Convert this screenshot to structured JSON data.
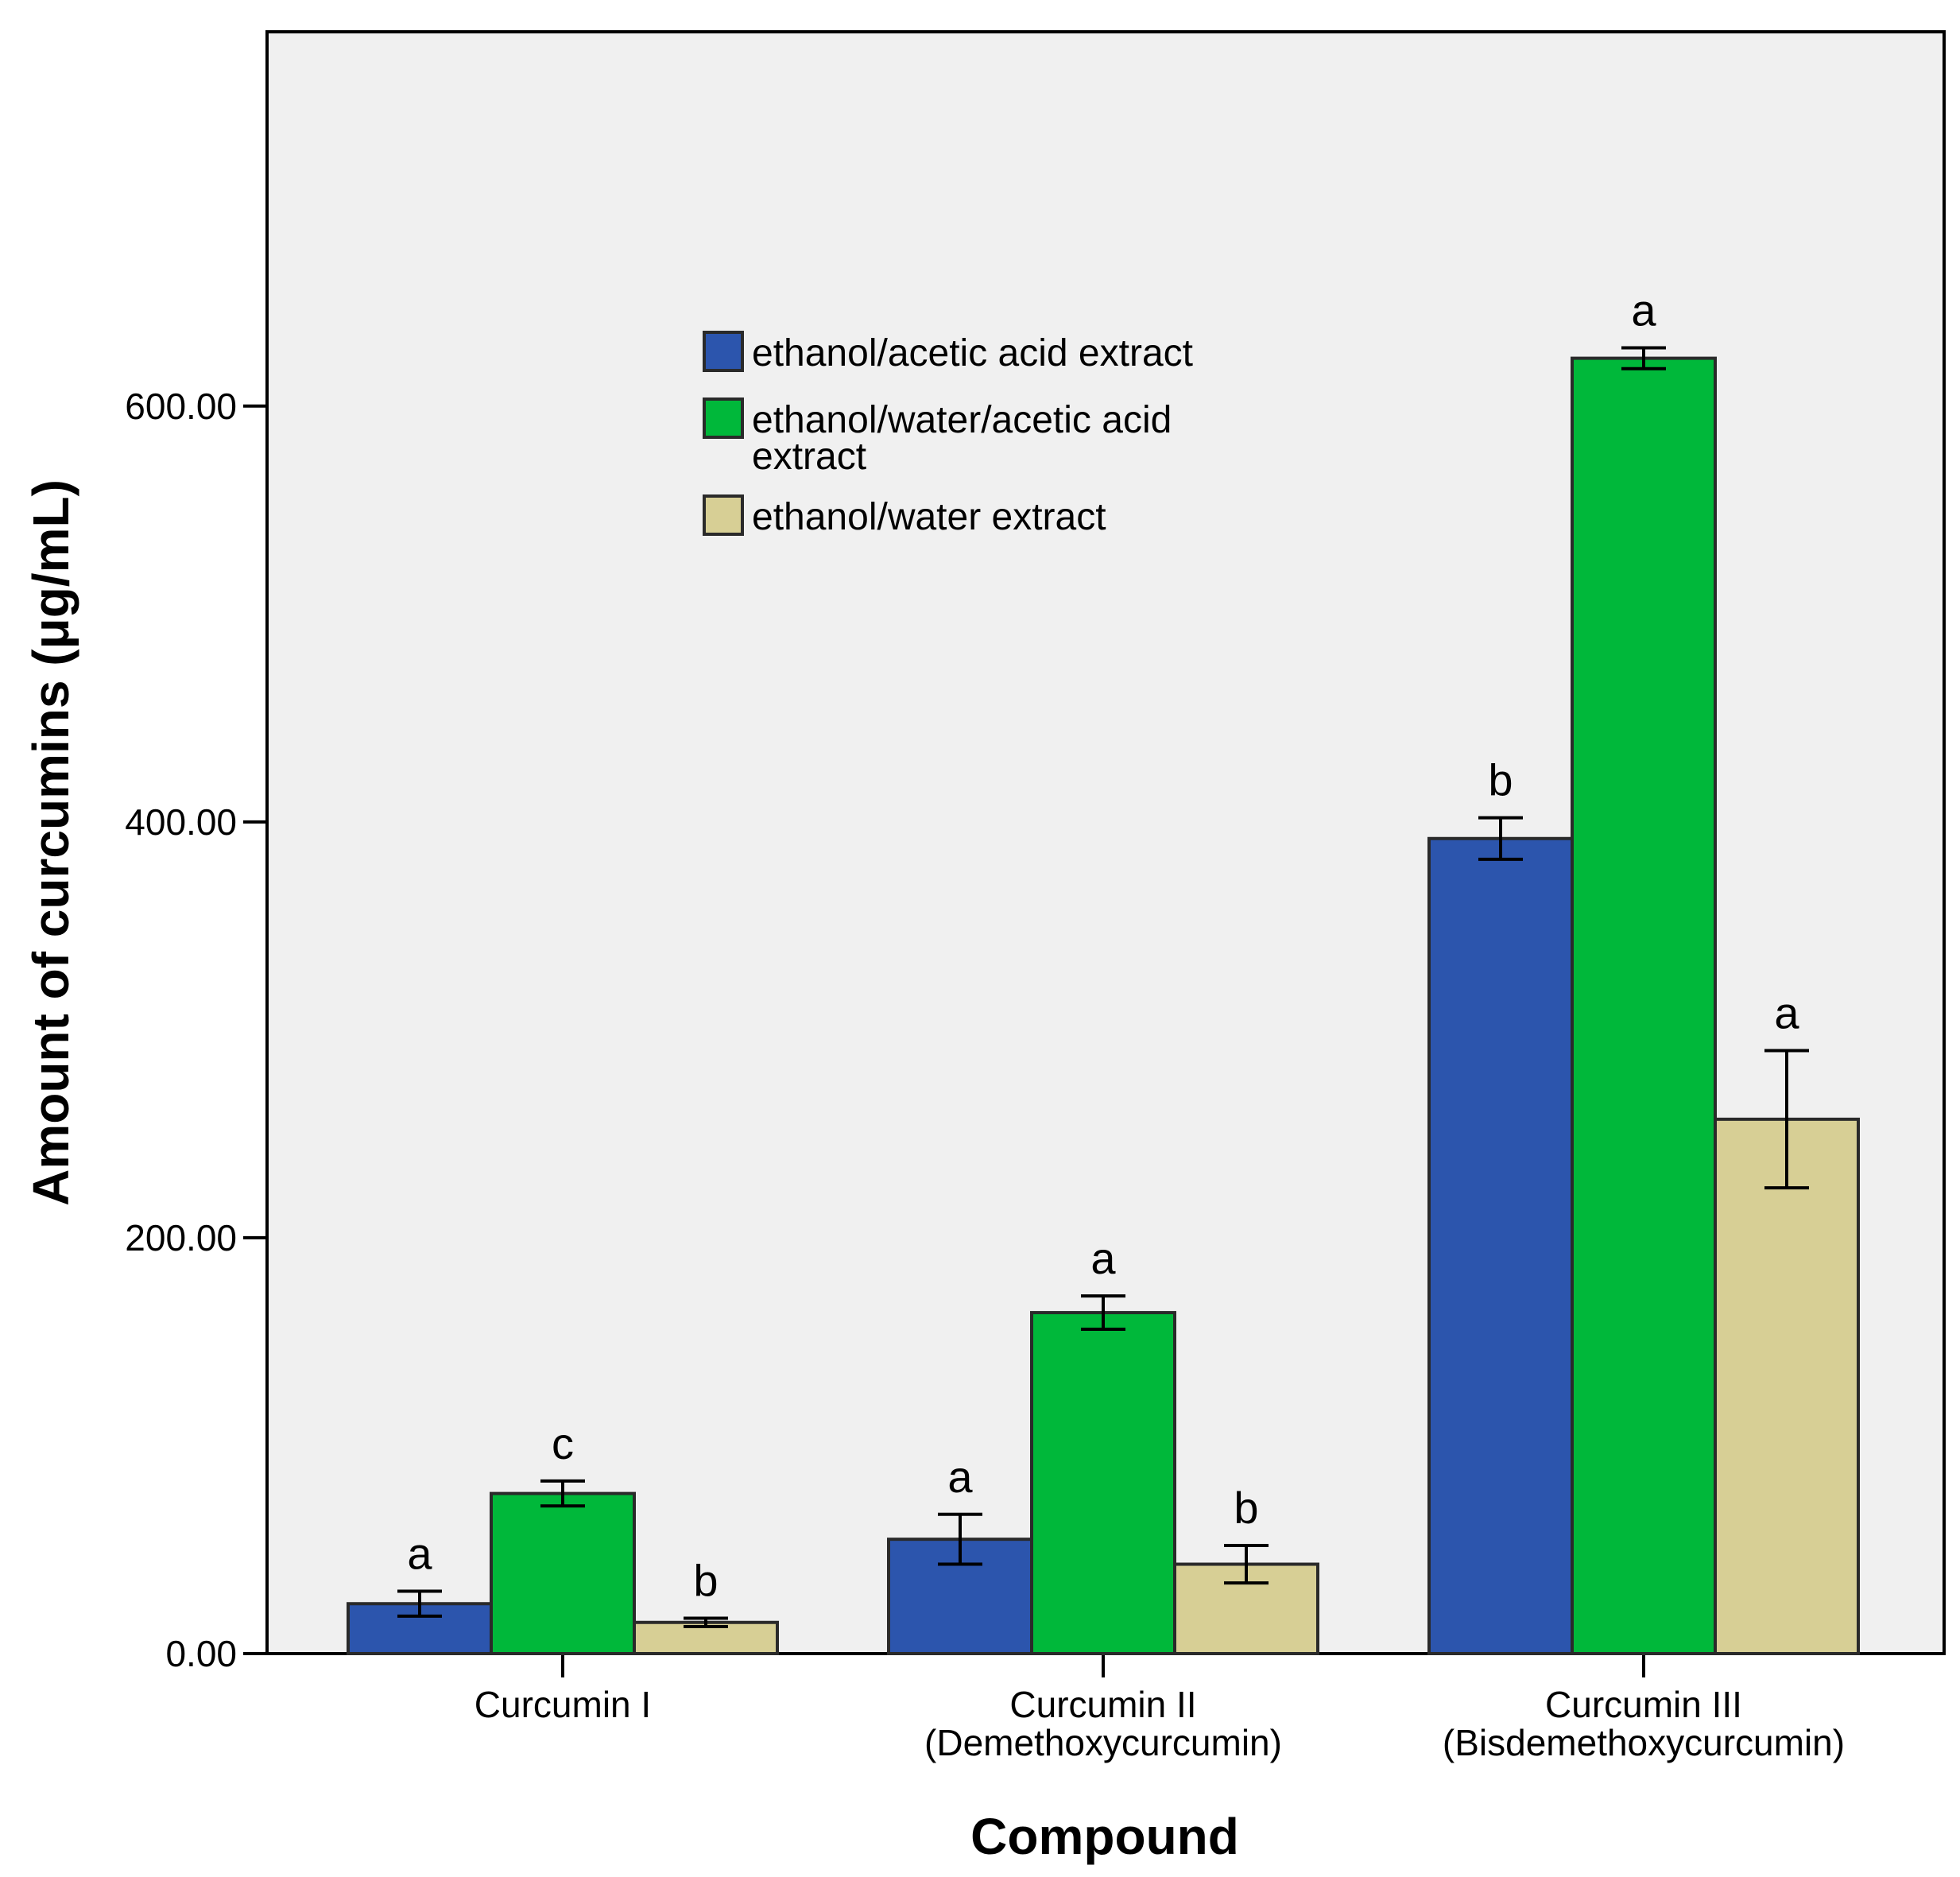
{
  "chart_data": {
    "type": "bar",
    "title": "",
    "xlabel": "Compound",
    "ylabel": "Amount of curcumins (μg/mL)",
    "ylim": [
      0,
      780
    ],
    "yticks": [
      {
        "value": 0,
        "label": "0.00"
      },
      {
        "value": 200,
        "label": "200.00"
      },
      {
        "value": 400,
        "label": "400.00"
      },
      {
        "value": 600,
        "label": "600.00"
      }
    ],
    "grid": false,
    "legend_position": "top-center",
    "categories": [
      {
        "lines": [
          "Curcumin I"
        ]
      },
      {
        "lines": [
          "Curcumin II",
          "(Demethoxycurcumin)"
        ]
      },
      {
        "lines": [
          "Curcumin III",
          "(Bisdemethoxycurcumin)"
        ]
      }
    ],
    "series": [
      {
        "name": "ethanol/acetic acid extract",
        "legend_lines": [
          "ethanol/acetic acid extract"
        ],
        "color": "#2c55ad",
        "values": [
          24,
          55,
          392
        ],
        "errors": [
          6,
          12,
          10
        ],
        "significance": [
          "a",
          "a",
          "b"
        ]
      },
      {
        "name": "ethanol/water/acetic acid extract",
        "legend_lines": [
          "ethanol/water/acetic acid",
          "extract"
        ],
        "color": "#00b83a",
        "values": [
          77,
          164,
          623
        ],
        "errors": [
          6,
          8,
          5
        ],
        "significance": [
          "c",
          "a",
          "a"
        ]
      },
      {
        "name": "ethanol/water extract",
        "legend_lines": [
          "ethanol/water extract"
        ],
        "color": "#d7cf95",
        "values": [
          15,
          43,
          257
        ],
        "errors": [
          2,
          9,
          33
        ],
        "significance": [
          "b",
          "b",
          "a"
        ]
      }
    ]
  }
}
